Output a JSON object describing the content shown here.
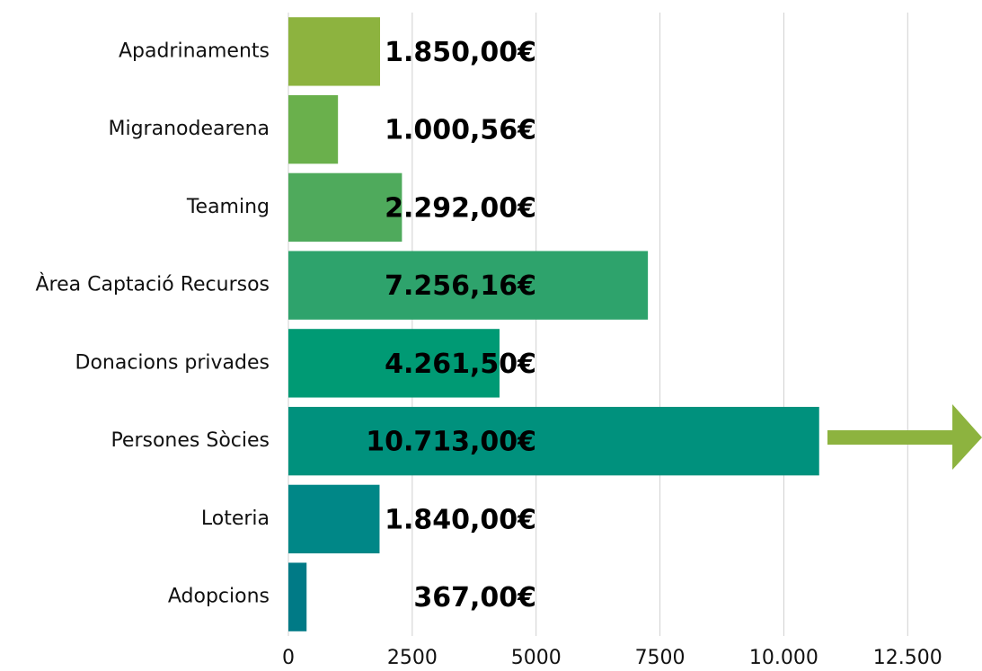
{
  "chart_data": {
    "type": "barh",
    "categories": [
      "Apadrinaments",
      "Migranodearena",
      "Teaming",
      "Àrea Captació Recursos",
      "Donacions privades",
      "Persones Sòcies",
      "Loteria",
      "Adopcions"
    ],
    "values": [
      1850,
      1000.56,
      2292,
      7256.16,
      4261.5,
      10713,
      1840,
      367
    ],
    "value_labels": [
      "1.850,00€",
      "1.000,56€",
      "2.292,00€",
      "7.256,16€",
      "4.261,50€",
      "10.713,00€",
      "1.840,00€",
      "367,00€"
    ],
    "colors": [
      "#8db33f",
      "#6ab04c",
      "#4faa5c",
      "#2ea36c",
      "#009a74",
      "#00917d",
      "#008787",
      "#007a86"
    ],
    "xlim": [
      0,
      14000
    ],
    "xticks": [
      0,
      2500,
      5000,
      7500,
      {
        "value": 10000,
        "label": "10.000"
      },
      {
        "value": 12500,
        "label": "12.500"
      }
    ],
    "grid": true
  }
}
